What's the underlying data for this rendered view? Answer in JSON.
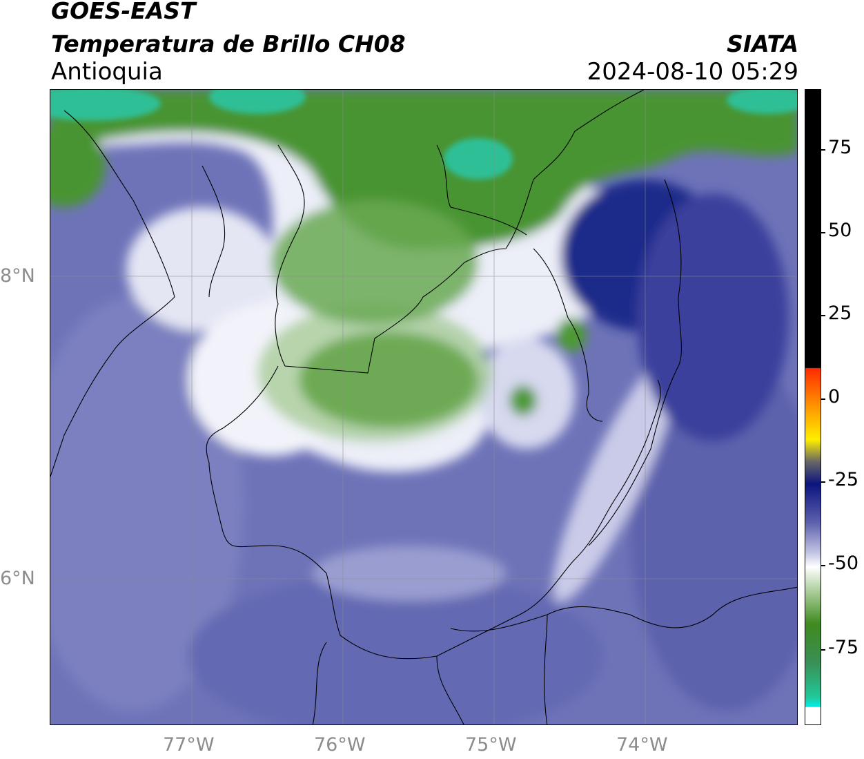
{
  "header": {
    "satellite": "GOES-EAST",
    "product": "Temperatura de Brillo CH08",
    "region": "Antioquia",
    "org": "SIATA",
    "datetime": "2024-08-10 05:29"
  },
  "map": {
    "latitude_labels": [
      "8°N",
      "6°N"
    ],
    "longitude_labels": [
      "77°W",
      "76°W",
      "75°W",
      "74°W"
    ]
  },
  "colorbar": {
    "tick_labels": [
      "75",
      "50",
      "25",
      "0",
      "-25",
      "-50",
      "-75"
    ],
    "colors": {
      "warm_top": "#000000",
      "red": "#ff2a00",
      "orange": "#ff9900",
      "yellow": "#ffee00",
      "navy": "#0c1480",
      "lavender": "#c8c9e6",
      "white": "#ffffff",
      "green": "#3f8a1f",
      "teal": "#21c89a",
      "cyan": "#00f0e8"
    }
  }
}
